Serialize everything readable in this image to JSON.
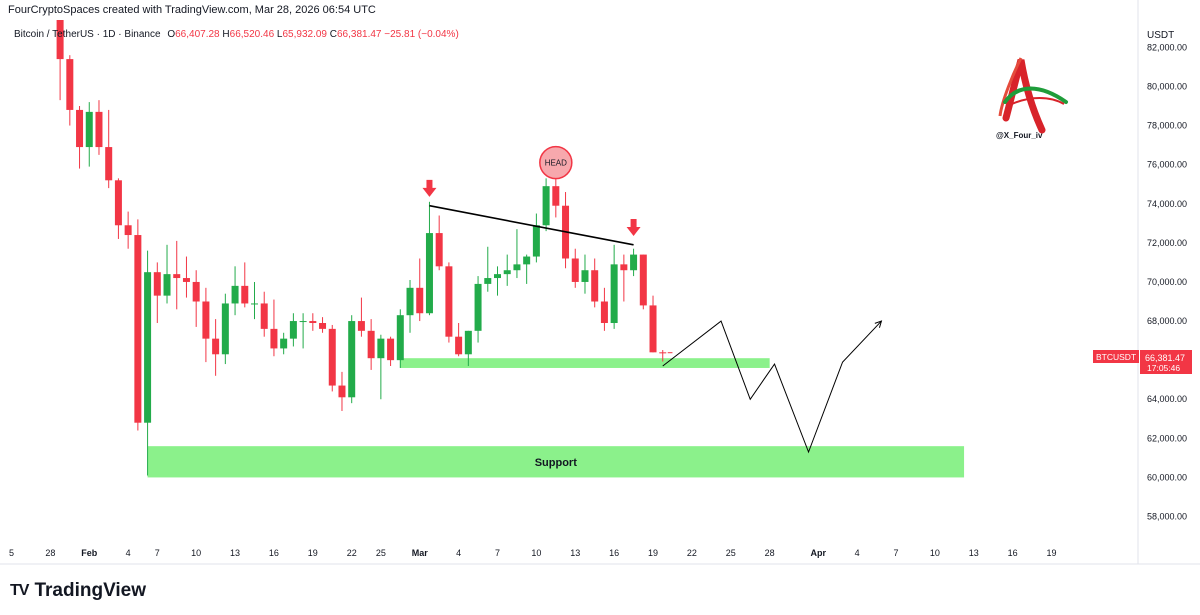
{
  "header": {
    "credit": "FourCryptoSpaces created with TradingView.com, Mar 28, 2026 06:54 UTC",
    "symbol": "Bitcoin / TetherUS · 1D · Binance",
    "o_label": "O",
    "o_value": "66,407.28",
    "h_label": "H",
    "h_value": "66,520.46",
    "l_label": "L",
    "l_value": "65,932.09",
    "c_label": "C",
    "c_value": "66,381.47",
    "change": "−25.81 (−0.04%)",
    "currency": "USDT"
  },
  "watermark": {
    "handle": "@X_Four_iv",
    "logo_icon": "red-green-a-logo-icon"
  },
  "footer": {
    "brand": "TradingView",
    "brand_icon": "tradingview-logo-icon"
  },
  "price_tag": {
    "symbol": "BTCUSDT",
    "price": "66,381.47",
    "countdown": "17:05:46"
  },
  "annotations": {
    "head_label": "HEAD",
    "support_label": "Support"
  },
  "colors": {
    "up": "#22ab4a",
    "down": "#f23645",
    "zone": "#7ef07e",
    "tag": "#f23645"
  },
  "chart_data": {
    "type": "candlestick",
    "ylim": [
      56800,
      83400
    ],
    "y_ticks": [
      58000,
      60000,
      62000,
      64000,
      66000,
      68000,
      70000,
      72000,
      74000,
      76000,
      78000,
      80000,
      82000
    ],
    "y_tick_labels": [
      "58,000.00",
      "60,000.00",
      "62,000.00",
      "64,000.00",
      "66,000.00",
      "68,000.00",
      "70,000.00",
      "72,000.00",
      "74,000.00",
      "76,000.00",
      "78,000.00",
      "80,000.00",
      "82,000.00"
    ],
    "x_start": "2026-01-24",
    "x_ticks": [
      {
        "day": 1,
        "label": "5"
      },
      {
        "day": 5,
        "label": "28"
      },
      {
        "day": 9,
        "label": "Feb",
        "bold": true
      },
      {
        "day": 13,
        "label": "4"
      },
      {
        "day": 16,
        "label": "7"
      },
      {
        "day": 20,
        "label": "10"
      },
      {
        "day": 24,
        "label": "13"
      },
      {
        "day": 28,
        "label": "16"
      },
      {
        "day": 32,
        "label": "19"
      },
      {
        "day": 36,
        "label": "22"
      },
      {
        "day": 39,
        "label": "25"
      },
      {
        "day": 43,
        "label": "Mar",
        "bold": true
      },
      {
        "day": 47,
        "label": "4"
      },
      {
        "day": 51,
        "label": "7"
      },
      {
        "day": 55,
        "label": "10"
      },
      {
        "day": 59,
        "label": "13"
      },
      {
        "day": 63,
        "label": "16"
      },
      {
        "day": 67,
        "label": "19"
      },
      {
        "day": 71,
        "label": "22"
      },
      {
        "day": 75,
        "label": "25"
      },
      {
        "day": 79,
        "label": "28"
      },
      {
        "day": 84,
        "label": "Apr",
        "bold": true
      },
      {
        "day": 88,
        "label": "4"
      },
      {
        "day": 92,
        "label": "7"
      },
      {
        "day": 96,
        "label": "10"
      },
      {
        "day": 100,
        "label": "13"
      },
      {
        "day": 104,
        "label": "16"
      },
      {
        "day": 108,
        "label": "19"
      }
    ],
    "candles": [
      [
        6,
        84000,
        84600,
        79300,
        81400
      ],
      [
        7,
        81400,
        81600,
        78000,
        78800
      ],
      [
        8,
        78800,
        79000,
        75800,
        76900
      ],
      [
        9,
        76900,
        79200,
        75900,
        78700
      ],
      [
        10,
        78700,
        79300,
        76500,
        76900
      ],
      [
        11,
        76900,
        78800,
        74800,
        75200
      ],
      [
        12,
        75200,
        75300,
        72200,
        72900
      ],
      [
        13,
        72900,
        73600,
        71700,
        72400
      ],
      [
        14,
        72400,
        73200,
        62400,
        62800
      ],
      [
        15,
        62800,
        71600,
        60100,
        70500
      ],
      [
        16,
        70500,
        71000,
        67900,
        69300
      ],
      [
        17,
        69300,
        71900,
        68900,
        70400
      ],
      [
        18,
        70400,
        72100,
        68600,
        70200
      ],
      [
        19,
        70200,
        71300,
        69200,
        70000
      ],
      [
        20,
        70000,
        70600,
        67700,
        69000
      ],
      [
        21,
        69000,
        69700,
        65900,
        67100
      ],
      [
        22,
        67100,
        68100,
        65200,
        66300
      ],
      [
        23,
        66300,
        69400,
        65800,
        68900
      ],
      [
        24,
        68900,
        70800,
        68300,
        69800
      ],
      [
        25,
        69800,
        71000,
        68700,
        68900
      ],
      [
        26,
        68900,
        70000,
        68100,
        68900
      ],
      [
        27,
        68900,
        69500,
        67200,
        67600
      ],
      [
        28,
        67600,
        69100,
        66200,
        66600
      ],
      [
        29,
        66600,
        67400,
        66300,
        67100
      ],
      [
        30,
        67100,
        68400,
        66700,
        68000
      ],
      [
        31,
        68000,
        68400,
        66600,
        68000
      ],
      [
        32,
        68000,
        68400,
        67500,
        67900
      ],
      [
        33,
        67900,
        68200,
        67400,
        67600
      ],
      [
        34,
        67600,
        67800,
        64400,
        64700
      ],
      [
        35,
        64700,
        65400,
        63400,
        64100
      ],
      [
        36,
        64100,
        68300,
        63800,
        68000
      ],
      [
        37,
        68000,
        69200,
        67200,
        67500
      ],
      [
        38,
        67500,
        68100,
        65500,
        66100
      ],
      [
        39,
        66100,
        67300,
        64000,
        67100
      ],
      [
        40,
        67100,
        67200,
        65700,
        66000
      ],
      [
        41,
        66000,
        68600,
        65600,
        68300
      ],
      [
        42,
        68300,
        70100,
        67400,
        69700
      ],
      [
        43,
        69700,
        71200,
        68000,
        68400
      ],
      [
        44,
        68400,
        74100,
        68300,
        72500
      ],
      [
        45,
        72500,
        73400,
        70600,
        70800
      ],
      [
        46,
        70800,
        71000,
        66900,
        67200
      ],
      [
        47,
        67200,
        67900,
        66200,
        66300
      ],
      [
        48,
        66300,
        67500,
        65700,
        67500
      ],
      [
        49,
        67500,
        70300,
        66900,
        69900
      ],
      [
        50,
        69900,
        71800,
        69500,
        70200
      ],
      [
        51,
        70200,
        70800,
        69300,
        70400
      ],
      [
        52,
        70400,
        71400,
        69800,
        70600
      ],
      [
        53,
        70600,
        72700,
        70200,
        70900
      ],
      [
        54,
        70900,
        71400,
        69900,
        71300
      ],
      [
        55,
        71300,
        73500,
        71000,
        72900
      ],
      [
        56,
        72900,
        75300,
        72600,
        74900
      ],
      [
        57,
        74900,
        75900,
        73300,
        73900
      ],
      [
        58,
        73900,
        74600,
        70700,
        71200
      ],
      [
        59,
        71200,
        71700,
        69700,
        70000
      ],
      [
        60,
        70000,
        71400,
        69400,
        70600
      ],
      [
        61,
        70600,
        71200,
        68700,
        69000
      ],
      [
        62,
        69000,
        69700,
        67500,
        67900
      ],
      [
        63,
        67900,
        71900,
        67600,
        70900
      ],
      [
        64,
        70900,
        71400,
        69000,
        70600
      ],
      [
        65,
        70600,
        71700,
        70300,
        71400
      ],
      [
        66,
        71400,
        71400,
        68600,
        68800
      ],
      [
        67,
        68800,
        69300,
        66400,
        66400
      ],
      [
        68,
        66400,
        66520,
        65930,
        66380
      ]
    ],
    "neckline": {
      "x": [
        44,
        65
      ],
      "y": [
        73900,
        71900
      ]
    },
    "head_marker": {
      "x": 57,
      "y": 75900
    },
    "shoulder_arrows": [
      {
        "x": 44,
        "y": 74300
      },
      {
        "x": 65,
        "y": 72300
      }
    ],
    "resistance_zone": {
      "x": [
        41,
        79
      ],
      "y": [
        65600,
        66100
      ]
    },
    "support_zone": {
      "x": [
        15,
        99
      ],
      "y": [
        60000,
        61600
      ],
      "label": "Support"
    },
    "projection_path": {
      "x": [
        68,
        74,
        77,
        79.5,
        83,
        86.5,
        90.5
      ],
      "y": [
        65700,
        68000,
        64000,
        65800,
        61300,
        65900,
        68000
      ]
    }
  }
}
